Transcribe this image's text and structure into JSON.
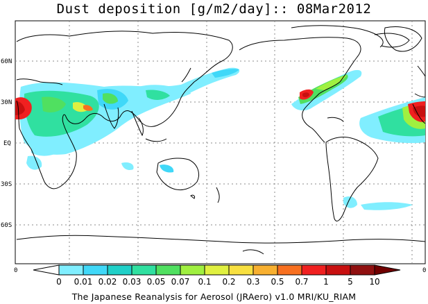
{
  "title": "Dust deposition [g/m2/day]:: 08Mar2012",
  "lat_labels": [
    "60N",
    "30N",
    "EQ",
    "30S",
    "60S"
  ],
  "axis_ticks": {
    "left": "0",
    "right": "0"
  },
  "colorbar": {
    "labels": [
      "0",
      "0.01",
      "0.02",
      "0.03",
      "0.05",
      "0.07",
      "0.1",
      "0.2",
      "0.3",
      "0.5",
      "0.7",
      "1",
      "5",
      "10"
    ],
    "colors": [
      "#ffffff",
      "#80eeff",
      "#40d8f8",
      "#20d0c8",
      "#30e0a0",
      "#50e060",
      "#a0f040",
      "#e0f040",
      "#f8e040",
      "#f8b030",
      "#f87020",
      "#f02020",
      "#c81010",
      "#901010",
      "#700000"
    ]
  },
  "credit": "The Japanese Reanalysis for Aerosol (JRAero) v1.0 MRI/KU_RIAM"
}
